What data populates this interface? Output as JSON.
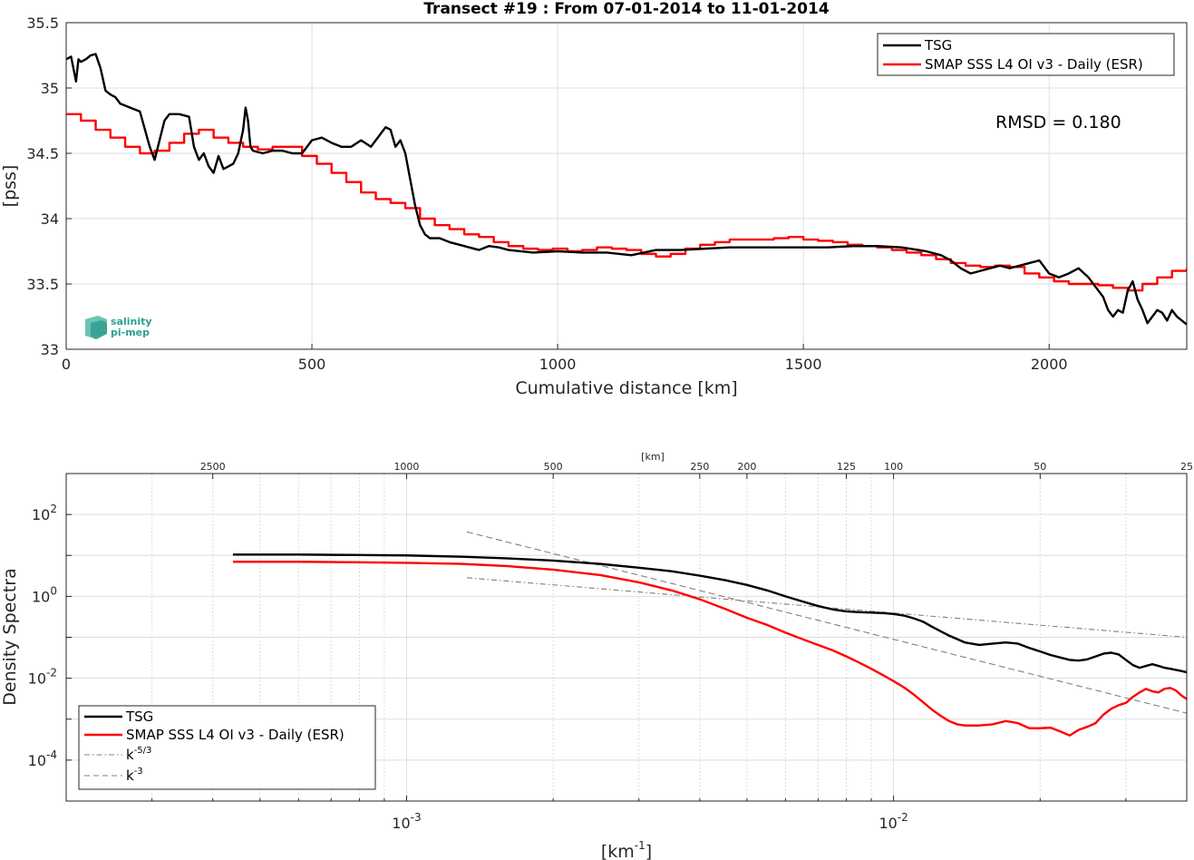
{
  "charts": {
    "top": {
      "title": "Transect #19 : From 07-01-2014 to 11-01-2014",
      "xlabel": "Cumulative distance [km]",
      "ylabel": "[pss]",
      "annotation": "RMSD = 0.180",
      "logo_text": [
        "salinity",
        "pi-mep"
      ]
    },
    "bottom": {
      "ylabel": "Density Spectra",
      "xlabel_base": "[km",
      "xlabel_exp": "-1",
      "xlabel_close": "]",
      "top_axis_label": "[km]",
      "legend": {
        "tsg": "TSG",
        "smap": "SMAP SSS L4 OI v3 - Daily (ESR)",
        "k53_base": "k",
        "k53_exp": "-5/3",
        "k3_base": "k",
        "k3_exp": "-3"
      }
    }
  },
  "colors": {
    "tsg": "#000000",
    "smap": "#ff0000",
    "ref": "#808080",
    "grid": "#dedede"
  },
  "chart_data": [
    {
      "type": "line",
      "title": "Transect #19 : From 07-01-2014 to 11-01-2014",
      "xlabel": "Cumulative distance [km]",
      "ylabel": "[pss]",
      "xlim": [
        0,
        2280
      ],
      "ylim": [
        33,
        35.5
      ],
      "xticks": [
        0,
        500,
        1000,
        1500,
        2000
      ],
      "yticks": [
        33,
        33.5,
        34,
        34.5,
        35,
        35.5
      ],
      "grid": true,
      "legend_position": "top-right",
      "series": [
        {
          "name": "TSG",
          "color": "#000000",
          "step": false,
          "x": [
            0,
            10,
            20,
            25,
            30,
            40,
            50,
            60,
            70,
            80,
            90,
            100,
            110,
            130,
            150,
            170,
            180,
            190,
            200,
            210,
            230,
            250,
            260,
            270,
            280,
            290,
            300,
            310,
            320,
            330,
            340,
            350,
            360,
            365,
            370,
            375,
            380,
            400,
            420,
            440,
            460,
            480,
            500,
            520,
            540,
            560,
            580,
            600,
            620,
            640,
            650,
            660,
            670,
            680,
            690,
            700,
            710,
            720,
            730,
            740,
            760,
            780,
            800,
            820,
            840,
            860,
            880,
            900,
            950,
            1000,
            1050,
            1100,
            1150,
            1200,
            1250,
            1300,
            1350,
            1400,
            1450,
            1500,
            1550,
            1600,
            1650,
            1700,
            1750,
            1780,
            1800,
            1820,
            1840,
            1860,
            1880,
            1900,
            1920,
            1940,
            1960,
            1980,
            2000,
            2020,
            2040,
            2060,
            2080,
            2100,
            2110,
            2120,
            2130,
            2140,
            2150,
            2160,
            2170,
            2180,
            2190,
            2200,
            2210,
            2220,
            2230,
            2240,
            2250,
            2260,
            2270,
            2280
          ],
          "y": [
            35.22,
            35.24,
            35.05,
            35.22,
            35.2,
            35.22,
            35.25,
            35.26,
            35.15,
            34.98,
            34.95,
            34.93,
            34.88,
            34.85,
            34.82,
            34.55,
            34.45,
            34.6,
            34.75,
            34.8,
            34.8,
            34.78,
            34.55,
            34.45,
            34.5,
            34.4,
            34.35,
            34.48,
            34.38,
            34.4,
            34.42,
            34.5,
            34.68,
            34.85,
            34.75,
            34.55,
            34.52,
            34.5,
            34.52,
            34.52,
            34.5,
            34.5,
            34.6,
            34.62,
            34.58,
            34.55,
            34.55,
            34.6,
            34.55,
            34.65,
            34.7,
            34.68,
            34.55,
            34.6,
            34.5,
            34.3,
            34.1,
            33.95,
            33.88,
            33.85,
            33.85,
            33.82,
            33.8,
            33.78,
            33.76,
            33.79,
            33.78,
            33.76,
            33.74,
            33.75,
            33.74,
            33.74,
            33.72,
            33.76,
            33.76,
            33.77,
            33.78,
            33.78,
            33.78,
            33.78,
            33.78,
            33.79,
            33.79,
            33.78,
            33.75,
            33.72,
            33.68,
            33.62,
            33.58,
            33.6,
            33.62,
            33.64,
            33.62,
            33.64,
            33.66,
            33.68,
            33.58,
            33.55,
            33.58,
            33.62,
            33.55,
            33.45,
            33.4,
            33.3,
            33.25,
            33.3,
            33.28,
            33.45,
            33.52,
            33.38,
            33.3,
            33.2,
            33.25,
            33.3,
            33.28,
            33.22,
            33.3,
            33.25,
            33.22,
            33.19
          ]
        },
        {
          "name": "SMAP SSS L4 OI v3 - Daily (ESR)",
          "color": "#ff0000",
          "step": true,
          "x": [
            0,
            30,
            60,
            90,
            120,
            150,
            180,
            210,
            240,
            270,
            300,
            330,
            360,
            390,
            420,
            450,
            480,
            510,
            540,
            570,
            600,
            630,
            660,
            690,
            720,
            750,
            780,
            810,
            840,
            870,
            900,
            930,
            960,
            990,
            1020,
            1050,
            1080,
            1110,
            1140,
            1170,
            1200,
            1230,
            1260,
            1290,
            1320,
            1350,
            1380,
            1410,
            1440,
            1470,
            1500,
            1530,
            1560,
            1590,
            1620,
            1650,
            1680,
            1710,
            1740,
            1770,
            1800,
            1830,
            1860,
            1890,
            1920,
            1950,
            1980,
            2010,
            2040,
            2070,
            2100,
            2130,
            2160,
            2190,
            2220,
            2250,
            2280
          ],
          "y": [
            34.8,
            34.75,
            34.68,
            34.62,
            34.55,
            34.5,
            34.52,
            34.58,
            34.65,
            34.68,
            34.62,
            34.58,
            34.55,
            34.53,
            34.55,
            34.55,
            34.48,
            34.42,
            34.35,
            34.28,
            34.2,
            34.15,
            34.12,
            34.08,
            34.0,
            33.95,
            33.92,
            33.88,
            33.86,
            33.82,
            33.79,
            33.77,
            33.76,
            33.77,
            33.75,
            33.76,
            33.78,
            33.77,
            33.76,
            33.73,
            33.71,
            33.73,
            33.77,
            33.8,
            33.82,
            33.84,
            33.84,
            33.84,
            33.85,
            33.86,
            33.84,
            33.83,
            33.82,
            33.8,
            33.79,
            33.78,
            33.76,
            33.74,
            33.72,
            33.69,
            33.66,
            33.64,
            33.63,
            33.64,
            33.63,
            33.58,
            33.55,
            33.52,
            33.5,
            33.5,
            33.49,
            33.47,
            33.45,
            33.5,
            33.55,
            33.6,
            33.62
          ]
        }
      ]
    },
    {
      "type": "line",
      "xscale": "log",
      "yscale": "log",
      "xlabel": "[km-1]",
      "ylabel": "Density Spectra",
      "xlim": [
        0.0002,
        0.04
      ],
      "ylim": [
        1e-05,
        1000
      ],
      "xticks": [
        0.001,
        0.01
      ],
      "xtick_labels": [
        {
          "base": "10",
          "exp": "-3"
        },
        {
          "base": "10",
          "exp": "-2"
        }
      ],
      "yticks": [
        0.0001,
        0.01,
        1,
        100
      ],
      "ytick_labels": [
        {
          "base": "10",
          "exp": "-4"
        },
        {
          "base": "10",
          "exp": "-2"
        },
        {
          "base": "10",
          "exp": "0"
        },
        {
          "base": "10",
          "exp": "2"
        }
      ],
      "top_axis": {
        "label": "[km]",
        "ticks_km": [
          2500,
          1000,
          500,
          250,
          200,
          125,
          100,
          50,
          25
        ]
      },
      "grid": true,
      "legend_position": "bottom-left",
      "series": [
        {
          "name": "TSG",
          "color": "#000000",
          "x": [
            0.00044,
            0.0006,
            0.0008,
            0.001,
            0.0013,
            0.0016,
            0.002,
            0.0025,
            0.003,
            0.0035,
            0.004,
            0.0045,
            0.005,
            0.0055,
            0.006,
            0.0065,
            0.007,
            0.0075,
            0.008,
            0.0085,
            0.009,
            0.0095,
            0.01,
            0.0105,
            0.011,
            0.0115,
            0.012,
            0.013,
            0.014,
            0.015,
            0.016,
            0.017,
            0.018,
            0.019,
            0.02,
            0.021,
            0.022,
            0.023,
            0.024,
            0.025,
            0.026,
            0.027,
            0.028,
            0.029,
            0.03,
            0.031,
            0.032,
            0.033,
            0.034,
            0.035,
            0.036,
            0.037,
            0.038,
            0.039,
            0.04
          ],
          "y": [
            10.5,
            10.5,
            10.2,
            10.0,
            9.3,
            8.5,
            7.5,
            6.2,
            5.0,
            4.1,
            3.2,
            2.5,
            1.9,
            1.4,
            1.0,
            0.75,
            0.58,
            0.48,
            0.43,
            0.41,
            0.4,
            0.39,
            0.37,
            0.34,
            0.29,
            0.24,
            0.18,
            0.11,
            0.075,
            0.065,
            0.07,
            0.075,
            0.07,
            0.055,
            0.045,
            0.037,
            0.032,
            0.028,
            0.027,
            0.029,
            0.034,
            0.04,
            0.042,
            0.038,
            0.028,
            0.021,
            0.018,
            0.02,
            0.022,
            0.02,
            0.018,
            0.017,
            0.016,
            0.015,
            0.014
          ]
        },
        {
          "name": "SMAP SSS L4 OI v3 - Daily (ESR)",
          "color": "#ff0000",
          "x": [
            0.00044,
            0.0006,
            0.0008,
            0.001,
            0.0013,
            0.0016,
            0.002,
            0.0025,
            0.003,
            0.0035,
            0.004,
            0.0045,
            0.005,
            0.0055,
            0.006,
            0.0065,
            0.007,
            0.0075,
            0.008,
            0.0085,
            0.009,
            0.0095,
            0.01,
            0.0105,
            0.011,
            0.0115,
            0.012,
            0.0125,
            0.013,
            0.0135,
            0.014,
            0.015,
            0.016,
            0.017,
            0.018,
            0.019,
            0.02,
            0.021,
            0.022,
            0.023,
            0.024,
            0.025,
            0.026,
            0.027,
            0.028,
            0.029,
            0.03,
            0.031,
            0.032,
            0.033,
            0.034,
            0.035,
            0.036,
            0.037,
            0.038,
            0.039,
            0.04
          ],
          "y": [
            7.0,
            7.0,
            6.8,
            6.6,
            6.2,
            5.5,
            4.5,
            3.3,
            2.2,
            1.4,
            0.85,
            0.5,
            0.3,
            0.2,
            0.13,
            0.09,
            0.065,
            0.048,
            0.034,
            0.024,
            0.017,
            0.012,
            0.0085,
            0.006,
            0.004,
            0.0026,
            0.0017,
            0.0012,
            0.0009,
            0.00075,
            0.0007,
            0.0007,
            0.00075,
            0.0009,
            0.0008,
            0.0006,
            0.0006,
            0.00062,
            0.0005,
            0.0004,
            0.00055,
            0.00065,
            0.0008,
            0.0013,
            0.0018,
            0.0022,
            0.0025,
            0.0035,
            0.0045,
            0.0055,
            0.0048,
            0.0045,
            0.0055,
            0.0058,
            0.005,
            0.0038,
            0.0031
          ]
        },
        {
          "name": "k-5/3",
          "color": "#808080",
          "dash": "dashdot",
          "x": [
            0.00133,
            0.04
          ],
          "y": [
            2.85,
            0.1
          ]
        },
        {
          "name": "k-3",
          "color": "#808080",
          "dash": "dashed",
          "x": [
            0.00133,
            0.04
          ],
          "y": [
            37.6,
            0.0014
          ]
        }
      ]
    }
  ]
}
